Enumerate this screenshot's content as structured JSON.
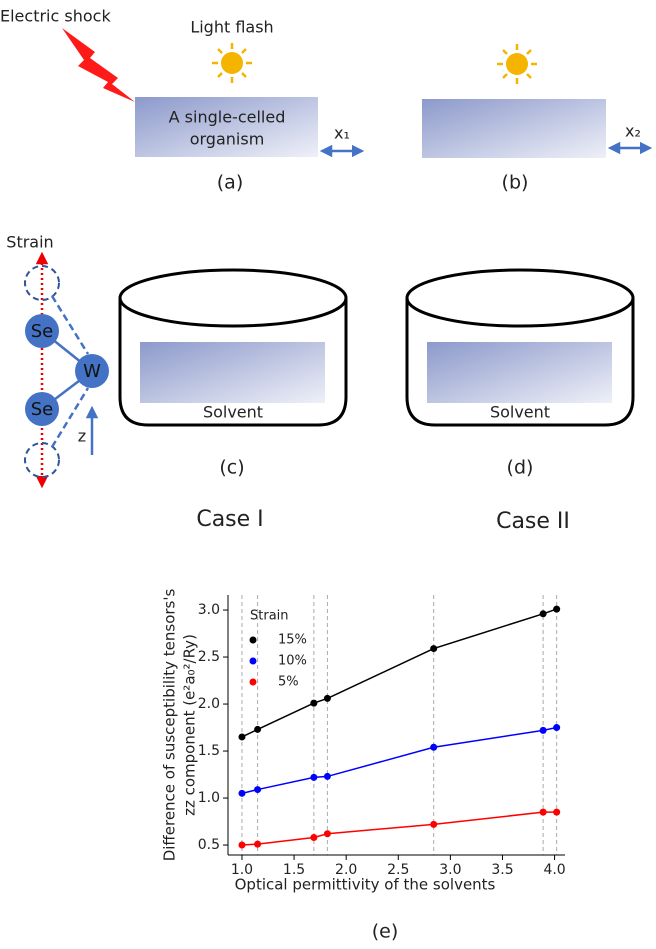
{
  "diagram": {
    "electric_shock": "Electric shock",
    "light_flash": "Light flash",
    "organism": [
      "A single-celled",
      "organism"
    ],
    "x1": "x₁",
    "label_a": "(a)",
    "x2": "x₂",
    "label_b": "(b)",
    "strain": "Strain",
    "se_top": "Se",
    "w": "W",
    "se_bottom": "Se",
    "z": "z",
    "solvent_c": "Solvent",
    "solvent_d": "Solvent",
    "label_c": "(c)",
    "label_d": "(d)",
    "case_1": "Case I",
    "case_2": "Case II"
  },
  "chart_data": {
    "type": "line",
    "panel_label": "(e)",
    "xlabel": "Optical permittivity of the solvents",
    "ylabel": [
      "Difference of susceptibility tensors's",
      "zz component (e²a₀²/Ry)"
    ],
    "legend_title": "Strain",
    "legend": "upper left",
    "vlines": true,
    "x": [
      1.0,
      1.15,
      1.69,
      1.82,
      2.84,
      3.89,
      4.02
    ],
    "series": [
      {
        "name": "15%",
        "color": "#000000",
        "values": [
          1.65,
          1.73,
          2.01,
          2.06,
          2.59,
          2.96,
          3.01
        ]
      },
      {
        "name": "10%",
        "color": "#0000ff",
        "values": [
          1.05,
          1.09,
          1.22,
          1.23,
          1.54,
          1.72,
          1.75
        ]
      },
      {
        "name": "5%",
        "color": "#ff0000",
        "values": [
          0.5,
          0.51,
          0.58,
          0.62,
          0.72,
          0.85,
          0.85
        ]
      }
    ],
    "xlim": [
      0.866,
      4.1
    ],
    "ylim": [
      0.394,
      3.16
    ],
    "xticks": [
      {
        "value": 1,
        "label": "1.0"
      },
      1.5,
      {
        "value": 2,
        "label": "2.0"
      },
      2.5,
      {
        "value": 3,
        "label": "3.0"
      },
      3.5,
      {
        "value": 4,
        "label": "4.0"
      }
    ],
    "yticks": [
      0.5,
      {
        "value": 1,
        "label": "1.0"
      },
      1.5,
      {
        "value": 2,
        "label": "2.0"
      },
      2.5,
      {
        "value": 3,
        "label": "3.0"
      }
    ]
  }
}
